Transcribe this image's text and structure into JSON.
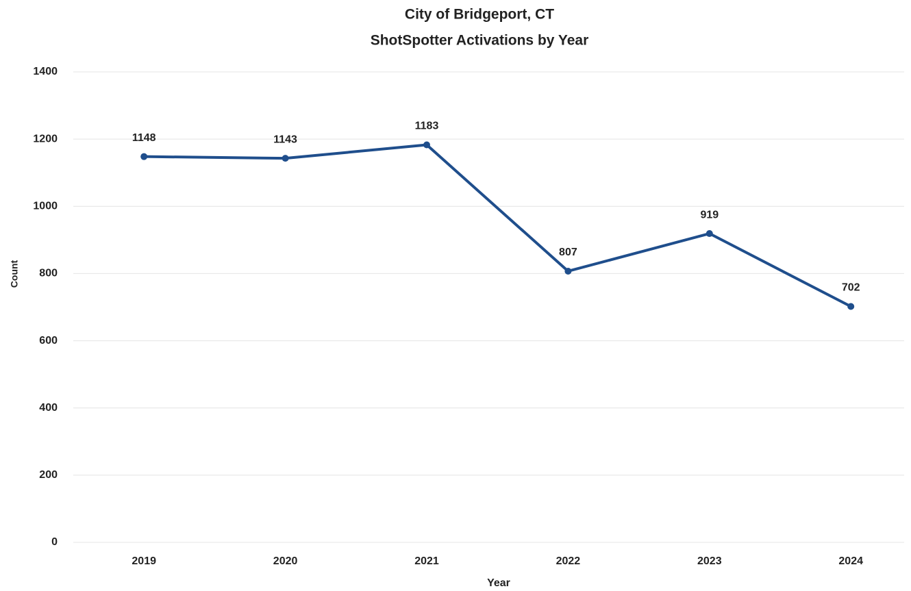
{
  "chart_data": {
    "type": "line",
    "title": "City of Bridgeport, CT",
    "subtitle": "ShotSpotter Activations by Year",
    "x_label": "Year",
    "y_label": "Count",
    "categories": [
      "2019",
      "2020",
      "2021",
      "2022",
      "2023",
      "2024"
    ],
    "series": [
      {
        "name": "Count",
        "color": "#1f4e8c",
        "values": [
          1148,
          1143,
          1183,
          807,
          919,
          702
        ]
      }
    ],
    "ylim": [
      0,
      1400
    ],
    "yticks": [
      0,
      200,
      400,
      600,
      800,
      1000,
      1200,
      1400
    ],
    "grid": true,
    "data_labels": true
  }
}
